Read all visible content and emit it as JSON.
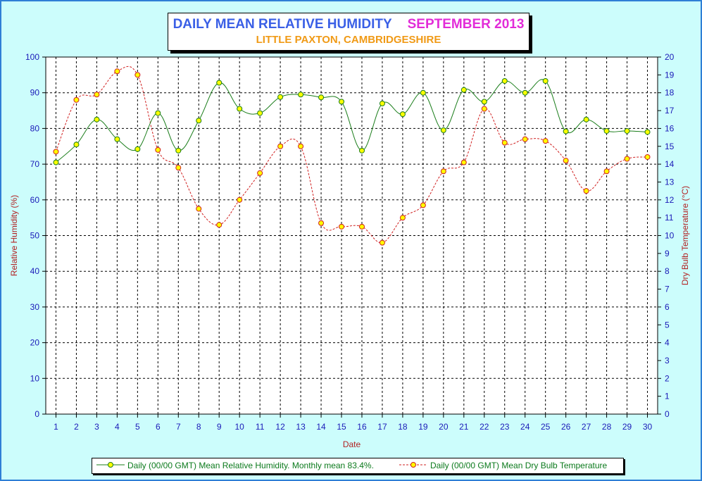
{
  "title": {
    "main": "DAILY MEAN RELATIVE HUMIDITY",
    "month": "SEPTEMBER 2013",
    "subtitle": "LITTLE PAXTON, CAMBRIDGESHIRE"
  },
  "colors": {
    "background": "#ccfdfc",
    "frame": "#2e7fd6",
    "humidity_line": "#1a7d1a",
    "humidity_marker": "#ffff00",
    "temperature_line": "#d02020",
    "temperature_marker": "#ffff00",
    "left_axis_text": "#1a1ab8",
    "right_axis_text": "#1a1ab8",
    "axis_title": "#b22222",
    "legend_text": "#0b7a1c",
    "grid": "#000000"
  },
  "legend": {
    "humidity": "Daily (00/00 GMT) Mean Relative Humidity. Monthly mean 83.4%.",
    "temperature": "Daily (00/00 GMT) Mean Dry Bulb Temperature"
  },
  "chart_data": {
    "type": "line",
    "grid": true,
    "legend_position": "bottom",
    "xlabel": "Date",
    "ylabel": "Relative Humidity (%)",
    "y2label": "Dry Bulb Temperature (°C)",
    "xlim": [
      0.5,
      30.5
    ],
    "ylim": [
      0,
      100
    ],
    "y2lim": [
      0,
      20
    ],
    "x": [
      1,
      2,
      3,
      4,
      5,
      6,
      7,
      8,
      9,
      10,
      11,
      12,
      13,
      14,
      15,
      16,
      17,
      18,
      19,
      20,
      21,
      22,
      23,
      24,
      25,
      26,
      27,
      28,
      29,
      30
    ],
    "yticks": [
      0,
      10,
      20,
      30,
      40,
      50,
      60,
      70,
      80,
      90,
      100
    ],
    "y2ticks": [
      0,
      1,
      2,
      3,
      4,
      5,
      6,
      7,
      8,
      9,
      10,
      11,
      12,
      13,
      14,
      15,
      16,
      17,
      18,
      19,
      20
    ],
    "series": [
      {
        "name": "Daily (00/00 GMT) Mean Relative Humidity. Monthly mean 83.4%.",
        "axis": "left",
        "values": [
          70.5,
          75.5,
          82.5,
          77.0,
          74.2,
          84.3,
          73.8,
          82.2,
          92.8,
          85.5,
          84.3,
          88.8,
          89.5,
          88.7,
          87.5,
          73.8,
          87.0,
          84.0,
          90.0,
          79.5,
          90.8,
          87.5,
          93.3,
          90.0,
          93.3,
          79.2,
          82.5,
          79.3,
          79.3,
          79.0
        ]
      },
      {
        "name": "Daily (00/00 GMT) Mean Dry Bulb Temperature",
        "axis": "right",
        "values": [
          14.7,
          17.6,
          17.9,
          19.2,
          19.0,
          14.8,
          13.8,
          11.5,
          10.6,
          12.0,
          13.5,
          15.0,
          15.0,
          10.7,
          10.5,
          10.5,
          9.6,
          11.0,
          11.7,
          13.6,
          14.1,
          17.1,
          15.2,
          15.4,
          15.3,
          14.2,
          12.5,
          13.6,
          14.3,
          14.4
        ]
      }
    ]
  }
}
